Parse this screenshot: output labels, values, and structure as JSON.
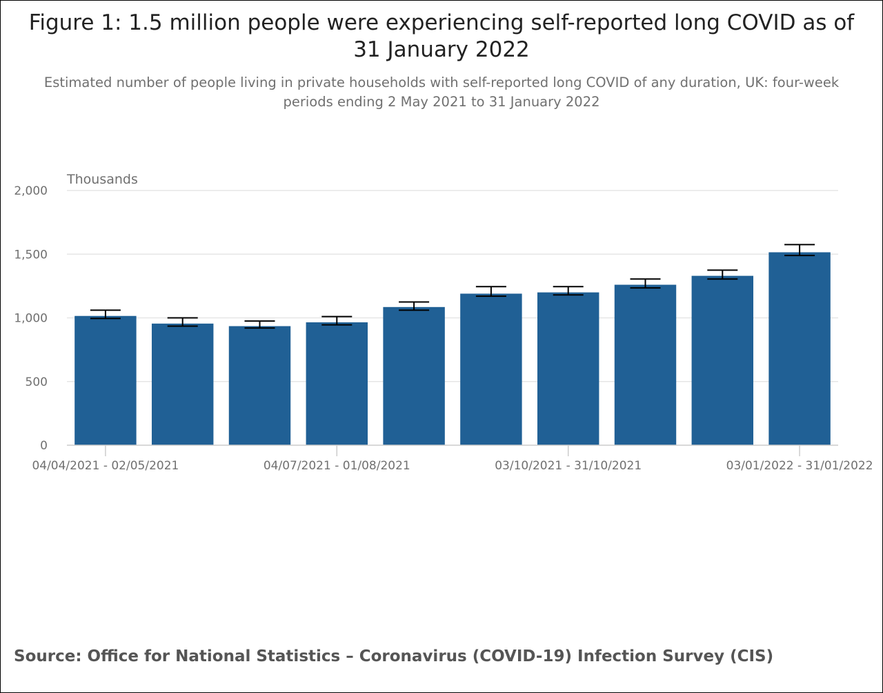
{
  "title": "Figure 1: 1.5 million people were experiencing self-reported long COVID as of 31 January 2022",
  "subtitle": "Estimated number of people living in private households with self-reported long COVID of any duration, UK: four-week periods ending 2 May 2021 to 31 January 2022",
  "unit_label": "Thousands",
  "source": "Source: Office for National Statistics – Coronavirus (COVID-19) Infection Survey (CIS)",
  "colors": {
    "bar": "#206095",
    "grid": "#e6e6e6",
    "axis": "#cccccc",
    "errorbar": "#000000"
  },
  "chart_data": {
    "type": "bar",
    "title": "Figure 1: 1.5 million people were experiencing self-reported long COVID as of 31 January 2022",
    "subtitle": "Estimated number of people living in private households with self-reported long COVID of any duration, UK: four-week periods ending 2 May 2021 to 31 January 2022",
    "ylabel": "Thousands",
    "xlabel": "",
    "ylim": [
      0,
      2000
    ],
    "yticks": [
      "0",
      "500",
      "1,000",
      "1,500",
      "2,000"
    ],
    "ytick_values": [
      0,
      500,
      1000,
      1500,
      2000
    ],
    "categories": [
      "04/04/2021 - 02/05/2021",
      "",
      "",
      "04/07/2021 - 01/08/2021",
      "",
      "",
      "03/10/2021 - 31/10/2021",
      "",
      "",
      "03/01/2022 - 31/01/2022"
    ],
    "values": [
      1015,
      955,
      935,
      965,
      1085,
      1190,
      1200,
      1260,
      1330,
      1515
    ],
    "ci_lower": [
      995,
      935,
      920,
      945,
      1060,
      1170,
      1180,
      1235,
      1305,
      1490
    ],
    "ci_upper": [
      1060,
      1000,
      975,
      1010,
      1125,
      1245,
      1245,
      1305,
      1375,
      1575
    ],
    "labeled_ticks": [
      0,
      3,
      6,
      9
    ],
    "grid": true,
    "legend": "none"
  }
}
